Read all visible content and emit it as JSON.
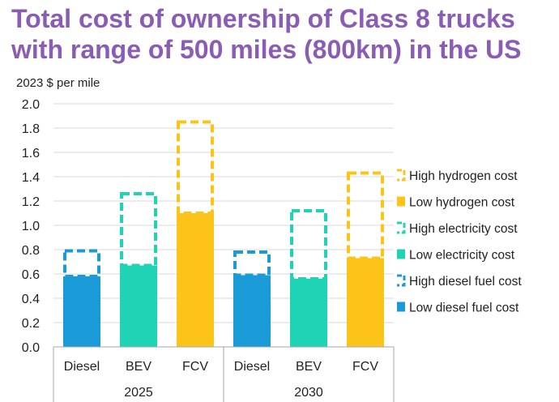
{
  "title": {
    "line1": "Total cost of ownership of Class 8 trucks",
    "line2": "with range of 500 miles (800km) in the US"
  },
  "colors": {
    "title": "#8a5cb4",
    "diesel": "#1a9ad6",
    "electricity": "#1fd4b4",
    "hydrogen": "#fcc419",
    "axis": "#a6a6a6",
    "grid": "#d9d9d9",
    "text": "#222222"
  },
  "chart_data": {
    "type": "bar",
    "subtype": "stacked range bars (solid = low cost, dashed outline = high cost)",
    "ylabel": "2023 $ per mile",
    "ylim": [
      0,
      2.0
    ],
    "yticks": [
      "0.0",
      "0.2",
      "0.4",
      "0.6",
      "0.8",
      "1.0",
      "1.2",
      "1.4",
      "1.6",
      "1.8",
      "2.0"
    ],
    "grid": true,
    "legend_position": "right",
    "groups": [
      {
        "label": "2025",
        "bars": [
          {
            "category": "Diesel",
            "low": 0.58,
            "high": 0.79,
            "fuel": "diesel"
          },
          {
            "category": "BEV",
            "low": 0.67,
            "high": 1.26,
            "fuel": "electricity"
          },
          {
            "category": "FCV",
            "low": 1.1,
            "high": 1.85,
            "fuel": "hydrogen"
          }
        ]
      },
      {
        "label": "2030",
        "bars": [
          {
            "category": "Diesel",
            "low": 0.59,
            "high": 0.78,
            "fuel": "diesel"
          },
          {
            "category": "BEV",
            "low": 0.56,
            "high": 1.12,
            "fuel": "electricity"
          },
          {
            "category": "FCV",
            "low": 0.73,
            "high": 1.43,
            "fuel": "hydrogen"
          }
        ]
      }
    ],
    "legend": [
      {
        "label": "High hydrogen cost",
        "fuel": "hydrogen",
        "style": "dashed"
      },
      {
        "label": "Low hydrogen cost",
        "fuel": "hydrogen",
        "style": "solid"
      },
      {
        "label": "High electricity cost",
        "fuel": "electricity",
        "style": "dashed"
      },
      {
        "label": "Low electricity cost",
        "fuel": "electricity",
        "style": "solid"
      },
      {
        "label": "High diesel fuel cost",
        "fuel": "diesel",
        "style": "dashed"
      },
      {
        "label": "Low diesel fuel cost",
        "fuel": "diesel",
        "style": "solid"
      }
    ]
  }
}
